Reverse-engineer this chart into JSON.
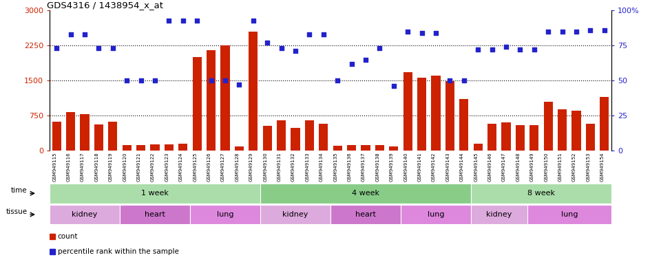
{
  "title": "GDS4316 / 1438954_x_at",
  "samples": [
    "GSM949115",
    "GSM949116",
    "GSM949117",
    "GSM949118",
    "GSM949119",
    "GSM949120",
    "GSM949121",
    "GSM949122",
    "GSM949123",
    "GSM949124",
    "GSM949125",
    "GSM949126",
    "GSM949127",
    "GSM949128",
    "GSM949129",
    "GSM949130",
    "GSM949131",
    "GSM949132",
    "GSM949133",
    "GSM949134",
    "GSM949135",
    "GSM949136",
    "GSM949137",
    "GSM949138",
    "GSM949139",
    "GSM949140",
    "GSM949141",
    "GSM949142",
    "GSM949143",
    "GSM949144",
    "GSM949145",
    "GSM949146",
    "GSM949147",
    "GSM949148",
    "GSM949149",
    "GSM949150",
    "GSM949151",
    "GSM949152",
    "GSM949153",
    "GSM949154"
  ],
  "counts": [
    620,
    820,
    780,
    560,
    620,
    110,
    110,
    130,
    130,
    150,
    2000,
    2150,
    2250,
    90,
    2550,
    530,
    650,
    490,
    640,
    580,
    100,
    110,
    120,
    110,
    80,
    1680,
    1560,
    1600,
    1490,
    1100,
    150,
    570,
    600,
    540,
    540,
    1050,
    880,
    860,
    580,
    1150
  ],
  "percentiles": [
    73,
    83,
    83,
    73,
    73,
    50,
    50,
    50,
    93,
    93,
    93,
    50,
    50,
    47,
    93,
    77,
    73,
    71,
    83,
    83,
    50,
    62,
    65,
    73,
    46,
    85,
    84,
    84,
    50,
    50,
    72,
    72,
    74,
    72,
    72,
    85,
    85,
    85,
    86,
    86
  ],
  "bar_color": "#cc2200",
  "dot_color": "#2222cc",
  "ylim_left": [
    0,
    3000
  ],
  "ylim_right": [
    0,
    100
  ],
  "yticks_left": [
    0,
    750,
    1500,
    2250,
    3000
  ],
  "yticks_right": [
    0,
    25,
    50,
    75,
    100
  ],
  "time_groups": [
    {
      "label": "1 week",
      "start": 0,
      "end": 14,
      "color": "#aaddaa"
    },
    {
      "label": "4 week",
      "start": 15,
      "end": 29,
      "color": "#88cc88"
    },
    {
      "label": "8 week",
      "start": 30,
      "end": 39,
      "color": "#aaddaa"
    }
  ],
  "tissue_groups": [
    {
      "label": "kidney",
      "start": 0,
      "end": 4,
      "color": "#ddaadd"
    },
    {
      "label": "heart",
      "start": 5,
      "end": 9,
      "color": "#cc77cc"
    },
    {
      "label": "lung",
      "start": 10,
      "end": 14,
      "color": "#dd88dd"
    },
    {
      "label": "kidney",
      "start": 15,
      "end": 19,
      "color": "#ddaadd"
    },
    {
      "label": "heart",
      "start": 20,
      "end": 24,
      "color": "#cc77cc"
    },
    {
      "label": "lung",
      "start": 25,
      "end": 29,
      "color": "#dd88dd"
    },
    {
      "label": "kidney",
      "start": 30,
      "end": 33,
      "color": "#ddaadd"
    },
    {
      "label": "lung",
      "start": 34,
      "end": 39,
      "color": "#dd88dd"
    }
  ],
  "legend_count_label": "count",
  "legend_pct_label": "percentile rank within the sample"
}
